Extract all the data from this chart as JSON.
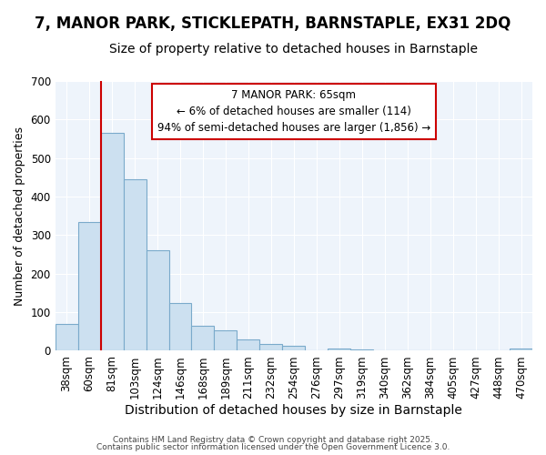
{
  "title": "7, MANOR PARK, STICKLEPATH, BARNSTAPLE, EX31 2DQ",
  "subtitle": "Size of property relative to detached houses in Barnstaple",
  "xlabel": "Distribution of detached houses by size in Barnstaple",
  "ylabel": "Number of detached properties",
  "bar_color": "#cce0f0",
  "bar_edge_color": "#7aaacb",
  "categories": [
    "38sqm",
    "60sqm",
    "81sqm",
    "103sqm",
    "124sqm",
    "146sqm",
    "168sqm",
    "189sqm",
    "211sqm",
    "232sqm",
    "254sqm",
    "276sqm",
    "297sqm",
    "319sqm",
    "340sqm",
    "362sqm",
    "384sqm",
    "405sqm",
    "427sqm",
    "448sqm",
    "470sqm"
  ],
  "values": [
    70,
    335,
    565,
    445,
    260,
    125,
    65,
    52,
    30,
    17,
    13,
    0,
    5,
    3,
    0,
    0,
    0,
    0,
    0,
    0,
    5
  ],
  "ylim": [
    0,
    700
  ],
  "yticks": [
    0,
    100,
    200,
    300,
    400,
    500,
    600,
    700
  ],
  "vline_color": "#cc0000",
  "annotation_text": "7 MANOR PARK: 65sqm\n← 6% of detached houses are smaller (114)\n94% of semi-detached houses are larger (1,856) →",
  "annotation_box_color": "#ffffff",
  "annotation_box_edge": "#cc0000",
  "footer1": "Contains HM Land Registry data © Crown copyright and database right 2025.",
  "footer2": "Contains public sector information licensed under the Open Government Licence 3.0.",
  "fig_bg_color": "#ffffff",
  "plot_bg_color": "#eef4fb",
  "grid_color": "#ffffff",
  "title_fontsize": 12,
  "subtitle_fontsize": 10,
  "tick_fontsize": 8.5,
  "ylabel_fontsize": 9,
  "xlabel_fontsize": 10
}
